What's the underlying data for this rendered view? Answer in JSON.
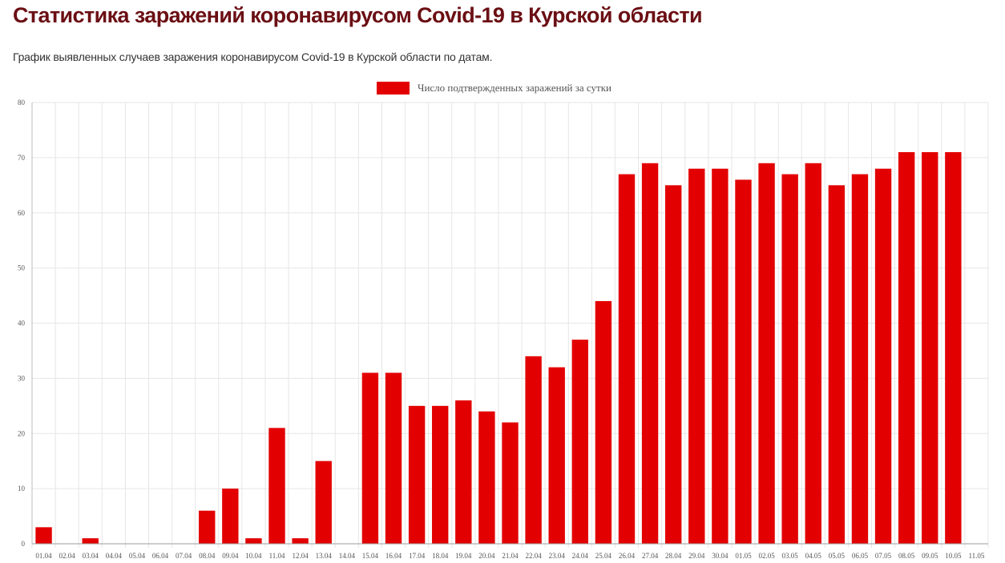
{
  "header": {
    "title": "Статистика заражений коронавирусом Covid-19 в Курской области",
    "subtitle": "График выявленных случаев заражения коронавирусом Covid-19 в Курской области по датам."
  },
  "colors": {
    "bar": "#e30000",
    "title": "#6b0f14",
    "grid": "#e6e6e6"
  },
  "chart_data": {
    "type": "bar",
    "legend_position": "top-center",
    "grid": true,
    "ylim": [
      0,
      80
    ],
    "yticks": [
      0,
      10,
      20,
      30,
      40,
      50,
      60,
      70,
      80
    ],
    "categories": [
      "01.04",
      "02.04",
      "03.04",
      "04.04",
      "05.04",
      "06.04",
      "07.04",
      "08.04",
      "09.04",
      "10.04",
      "11.04",
      "12.04",
      "13.04",
      "14.04",
      "15.04",
      "16.04",
      "17.04",
      "18.04",
      "19.04",
      "20.04",
      "21.04",
      "22.04",
      "23.04",
      "24.04",
      "25.04",
      "26.04",
      "27.04",
      "28.04",
      "29.04",
      "30.04",
      "01.05",
      "02.05",
      "03.05",
      "04.05",
      "05.05",
      "06.05",
      "07.05",
      "08.05",
      "09.05",
      "10.05",
      "11.05"
    ],
    "series": [
      {
        "name": "Число подтвержденных заражений за сутки",
        "color": "#e30000",
        "values": [
          3,
          0,
          1,
          0,
          0,
          0,
          0,
          6,
          10,
          1,
          21,
          1,
          15,
          0,
          31,
          31,
          25,
          25,
          26,
          24,
          22,
          34,
          32,
          37,
          44,
          67,
          69,
          65,
          68,
          68,
          66,
          69,
          67,
          69,
          65,
          67,
          68,
          71,
          71,
          71,
          0
        ]
      }
    ]
  }
}
